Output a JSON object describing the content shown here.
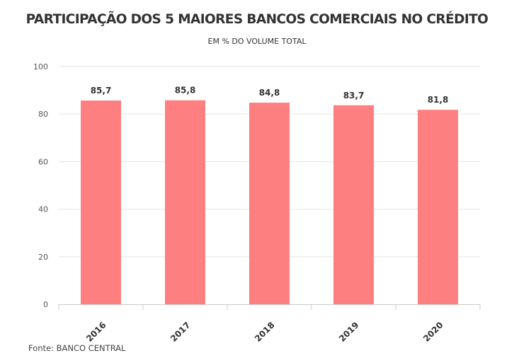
{
  "chart_data": {
    "type": "bar",
    "title": "PARTICIPAÇÃO DOS 5 MAIORES BANCOS COMERCIAIS NO CRÉDITO",
    "subtitle": "EM % DO VOLUME TOTAL",
    "categories": [
      "2016",
      "2017",
      "2018",
      "2019",
      "2020"
    ],
    "values": [
      85.7,
      85.8,
      84.8,
      83.7,
      81.8
    ],
    "value_labels": [
      "85,7",
      "85,8",
      "84,8",
      "83,7",
      "81,8"
    ],
    "ylim": [
      0,
      100
    ],
    "yticks": [
      0,
      20,
      40,
      60,
      80,
      100
    ],
    "grid": true,
    "bar_color": "#fe7f7f",
    "grid_color": "#e6e6e6"
  },
  "source": "Fonte: BANCO CENTRAL"
}
